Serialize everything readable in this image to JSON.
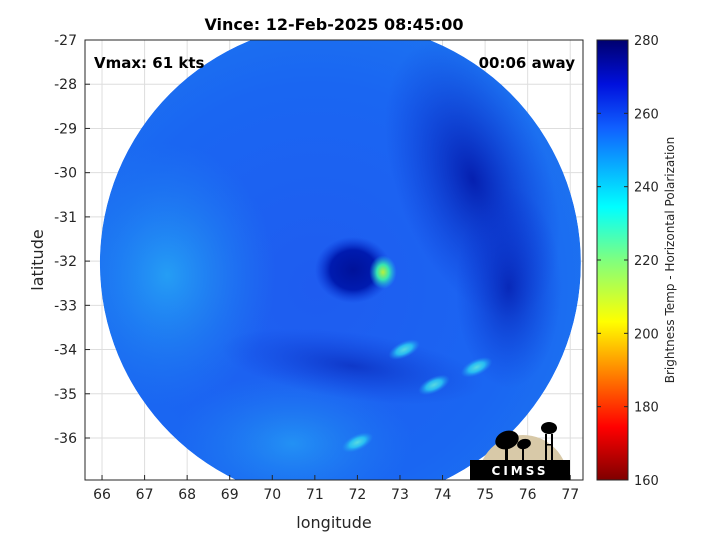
{
  "chart_data": {
    "type": "heatmap",
    "title": "Vince: 12-Feb-2025 08:45:00",
    "xlabel": "longitude",
    "ylabel": "latitude",
    "xlim": [
      65.6,
      77.3
    ],
    "ylim": [
      -36.95,
      -27
    ],
    "x_ticks": [
      "66",
      "67",
      "68",
      "69",
      "70",
      "71",
      "72",
      "73",
      "74",
      "75",
      "76",
      "77"
    ],
    "y_ticks": [
      "-27",
      "-28",
      "-29",
      "-30",
      "-31",
      "-32",
      "-33",
      "-34",
      "-35",
      "-36"
    ],
    "grid": true,
    "colorbar": {
      "label": "Brightness Temp - Horizontal Polarization",
      "range": [
        160,
        280
      ],
      "ticks": [
        "280",
        "260",
        "240",
        "220",
        "200",
        "180",
        "160"
      ],
      "colormap": "jet"
    },
    "annotations": {
      "vmax": "Vmax: 61 kts",
      "away": "00:06 away"
    },
    "swath": {
      "shape": "circle",
      "center_lon": 71.6,
      "center_lat": -32.05,
      "radius_deg": 5.65
    },
    "storm_center": {
      "lon": 72.1,
      "lat": -32.1
    },
    "features": [
      {
        "kind": "eye",
        "lon": 71.9,
        "lat": -32.2,
        "temp": 265
      },
      {
        "kind": "warm-core",
        "lon": 72.6,
        "lat": -32.25,
        "temp": 232
      },
      {
        "kind": "rainband",
        "lon": 73.1,
        "lat": -34.0,
        "temp": 238
      },
      {
        "kind": "rainband",
        "lon": 73.8,
        "lat": -34.8,
        "temp": 242
      },
      {
        "kind": "rainband",
        "lon": 74.8,
        "lat": -34.4,
        "temp": 244
      },
      {
        "kind": "rainband",
        "lon": 72.0,
        "lat": -36.1,
        "temp": 240
      }
    ]
  },
  "logo": {
    "text": "CIMSS",
    "colors": {
      "background": "#d8c9a8",
      "foreground": "#000000"
    }
  },
  "colors": {
    "background": "#ffffff",
    "axis": "#262626",
    "grid": "#dddddd",
    "swath_base": "#1a5cf0",
    "swath_cold": "#001a9e",
    "swath_light": "#1f9bf2"
  }
}
